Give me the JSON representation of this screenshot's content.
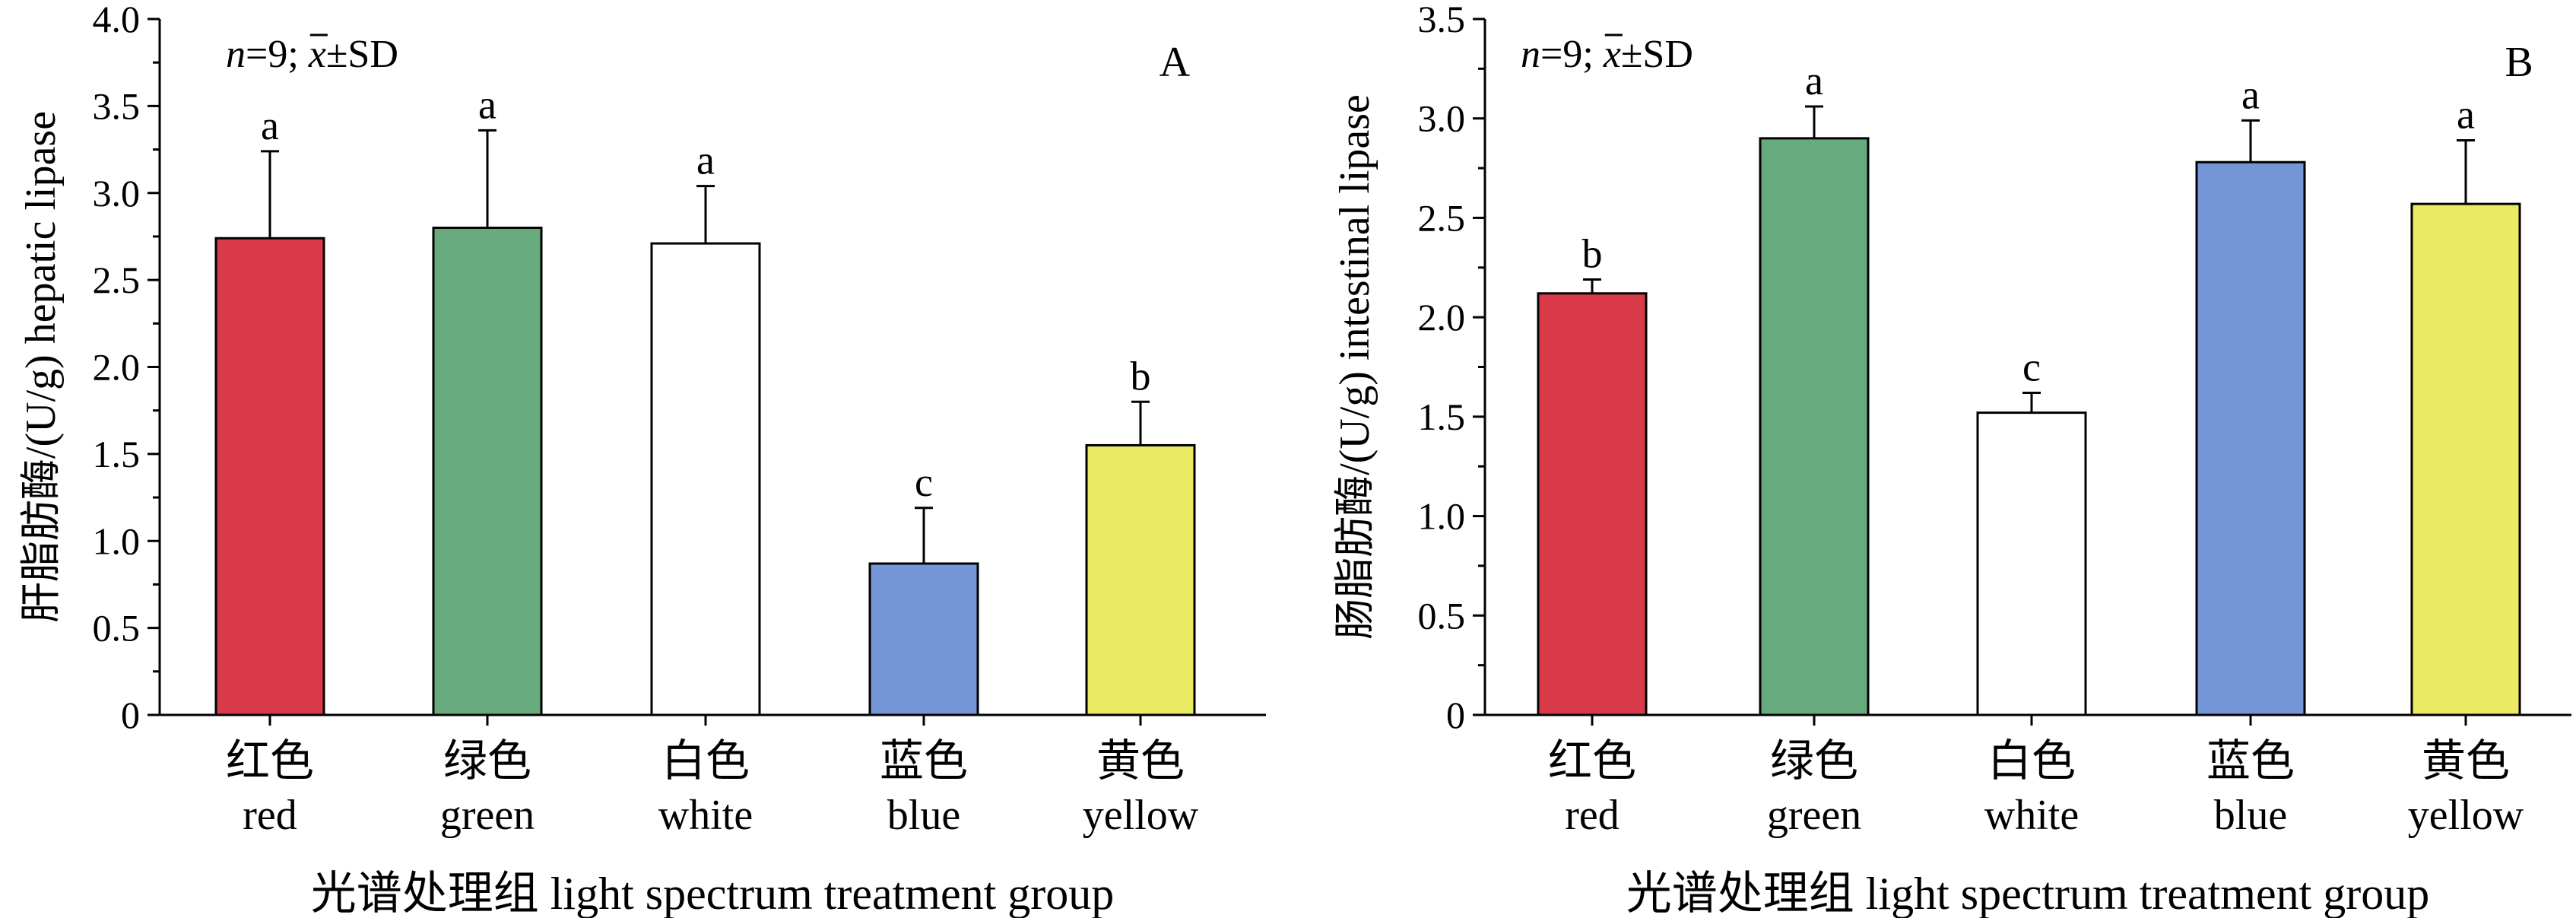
{
  "chart_data": [
    {
      "type": "bar",
      "panel_label": "A",
      "stats_label": {
        "n_italic": "n",
        "n_rest": "=9; ",
        "x_symbol": "x",
        "after": "±SD"
      },
      "ylabel": {
        "zh": "肝脂肪酶",
        "en": "/(U/g) hepatic lipase"
      },
      "xlabel": "光谱处理组 light spectrum treatment group",
      "ylim": [
        0,
        4.0
      ],
      "yticks": [
        0,
        0.5,
        1.0,
        1.5,
        2.0,
        2.5,
        3.0,
        3.5,
        4.0
      ],
      "ytick_labels": [
        "0",
        "0.5",
        "1.0",
        "1.5",
        "2.0",
        "2.5",
        "3.0",
        "3.5",
        "4.0"
      ],
      "grid": false,
      "categories": [
        {
          "zh": "红色",
          "en": "red",
          "color": "#d93a49",
          "value": 2.74,
          "sd": 0.5,
          "letter": "a"
        },
        {
          "zh": "绿色",
          "en": "green",
          "color": "#67aa7e",
          "value": 2.8,
          "sd": 0.56,
          "letter": "a"
        },
        {
          "zh": "白色",
          "en": "white",
          "color": "#ffffff",
          "value": 2.71,
          "sd": 0.33,
          "letter": "a"
        },
        {
          "zh": "蓝色",
          "en": "blue",
          "color": "#7596d6",
          "value": 0.87,
          "sd": 0.32,
          "letter": "c"
        },
        {
          "zh": "黄色",
          "en": "yellow",
          "color": "#eaea63",
          "value": 1.55,
          "sd": 0.25,
          "letter": "b"
        }
      ]
    },
    {
      "type": "bar",
      "panel_label": "B",
      "stats_label": {
        "n_italic": "n",
        "n_rest": "=9; ",
        "x_symbol": "x",
        "after": "±SD"
      },
      "ylabel": {
        "zh": "肠脂肪酶",
        "en": "/(U/g) intestinal lipase"
      },
      "xlabel": "光谱处理组 light spectrum treatment group",
      "ylim": [
        0,
        3.5
      ],
      "yticks": [
        0,
        0.5,
        1.0,
        1.5,
        2.0,
        2.5,
        3.0,
        3.5
      ],
      "ytick_labels": [
        "0",
        "0.5",
        "1.0",
        "1.5",
        "2.0",
        "2.5",
        "3.0",
        "3.5"
      ],
      "grid": false,
      "categories": [
        {
          "zh": "红色",
          "en": "red",
          "color": "#d93a49",
          "value": 2.12,
          "sd": 0.07,
          "letter": "b"
        },
        {
          "zh": "绿色",
          "en": "green",
          "color": "#67aa7e",
          "value": 2.9,
          "sd": 0.16,
          "letter": "a"
        },
        {
          "zh": "白色",
          "en": "white",
          "color": "#ffffff",
          "value": 1.52,
          "sd": 0.1,
          "letter": "c"
        },
        {
          "zh": "蓝色",
          "en": "blue",
          "color": "#7596d6",
          "value": 2.78,
          "sd": 0.21,
          "letter": "a"
        },
        {
          "zh": "黄色",
          "en": "yellow",
          "color": "#eaea63",
          "value": 2.57,
          "sd": 0.32,
          "letter": "a"
        }
      ]
    }
  ]
}
